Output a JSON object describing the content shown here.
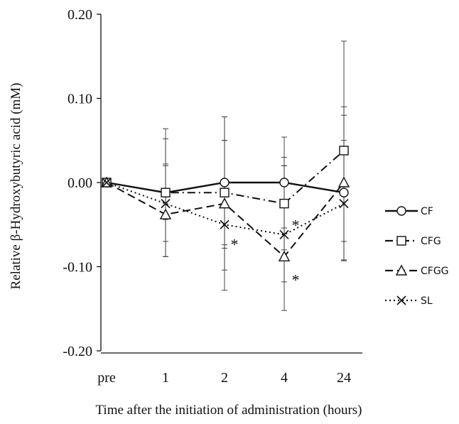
{
  "chart_data": {
    "type": "line",
    "ylabel": "Relative β-Hydroxybutyric acid (mM)",
    "xlabel": "Time after the initiation of administration  (hours)",
    "categories": [
      "pre",
      "1",
      "2",
      "4",
      "24"
    ],
    "ylim": [
      -0.2,
      0.2
    ],
    "yticks": [
      0.2,
      0.1,
      0.0,
      -0.1,
      -0.2
    ],
    "ytick_labels": [
      "0.20",
      "0.10",
      "0.00",
      "-0.10",
      "-0.20"
    ],
    "legend_position": "right",
    "series": [
      {
        "name": "CF",
        "marker": "circle",
        "dash": "solid",
        "values": [
          0.0,
          -0.012,
          0.0,
          0.0,
          -0.012
        ],
        "err_hi": [
          0.0,
          0.064,
          0.078,
          0.054,
          0.08
        ],
        "err_lo": [
          0.0,
          -0.088,
          -0.078,
          -0.054,
          -0.092
        ]
      },
      {
        "name": "CFG",
        "marker": "square",
        "dash": "dashdot",
        "values": [
          0.0,
          -0.012,
          -0.012,
          -0.025,
          0.038
        ],
        "err_hi": [
          0.0,
          0.02,
          0.05,
          0.03,
          0.168
        ],
        "err_lo": [
          0.0,
          -0.044,
          -0.074,
          -0.08,
          -0.093
        ]
      },
      {
        "name": "CFGG",
        "marker": "triangle",
        "dash": "dashed",
        "values": [
          0.0,
          -0.038,
          -0.025,
          -0.088,
          0.0
        ],
        "err_hi": [
          0.0,
          0.022,
          0.05,
          0.02,
          0.05
        ],
        "err_lo": [
          0.0,
          -0.088,
          -0.104,
          -0.152,
          -0.07
        ]
      },
      {
        "name": "SL",
        "marker": "cross",
        "dash": "dotted",
        "values": [
          0.0,
          -0.025,
          -0.05,
          -0.062,
          -0.025
        ],
        "err_hi": [
          0.0,
          0.052,
          0.078,
          0.02,
          0.09
        ],
        "err_lo": [
          0.0,
          -0.07,
          -0.128,
          -0.118,
          -0.092
        ]
      }
    ],
    "annotations": [
      {
        "text": "*",
        "category": "2",
        "y": -0.068
      },
      {
        "text": "*",
        "category": "4",
        "y": -0.045
      },
      {
        "text": "*",
        "category": "4",
        "y": -0.11
      }
    ]
  }
}
